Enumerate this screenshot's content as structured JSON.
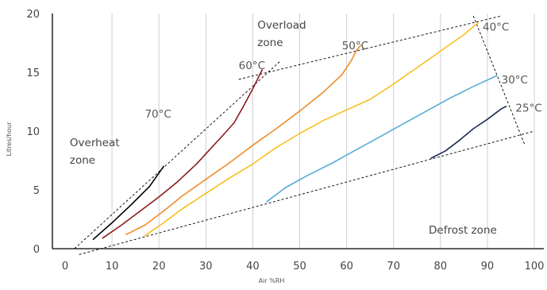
{
  "chart_data": {
    "type": "line",
    "xlabel": "Air %RH",
    "ylabel": "Litres/hour",
    "xlim": [
      -3,
      100
    ],
    "ylim": [
      0,
      20
    ],
    "xticks": [
      0,
      10,
      20,
      30,
      40,
      50,
      60,
      70,
      80,
      90,
      100
    ],
    "yticks": [
      0,
      5,
      10,
      15,
      20
    ],
    "grid": "vertical",
    "series": [
      {
        "name": "70°C",
        "color": "#000000",
        "points": [
          [
            6,
            0.8
          ],
          [
            10,
            2.2
          ],
          [
            14,
            3.7
          ],
          [
            18,
            5.3
          ],
          [
            21,
            7.0
          ]
        ],
        "label_at": [
          17,
          11.5
        ]
      },
      {
        "name": "60°C",
        "color": "#8b1a1e",
        "points": [
          [
            8,
            0.9
          ],
          [
            12,
            2.0
          ],
          [
            16,
            3.2
          ],
          [
            20,
            4.4
          ],
          [
            24,
            5.7
          ],
          [
            28,
            7.2
          ],
          [
            31,
            8.5
          ],
          [
            34,
            9.8
          ],
          [
            36,
            10.7
          ],
          [
            38,
            12.1
          ],
          [
            40,
            13.6
          ],
          [
            42,
            15.2
          ]
        ],
        "label_at": [
          37,
          15.6
        ]
      },
      {
        "name": "50°C",
        "color": "#ef8c2b",
        "points": [
          [
            13,
            1.2
          ],
          [
            17,
            2.0
          ],
          [
            21,
            3.2
          ],
          [
            25,
            4.5
          ],
          [
            30,
            5.9
          ],
          [
            35,
            7.3
          ],
          [
            40,
            8.8
          ],
          [
            45,
            10.2
          ],
          [
            50,
            11.7
          ],
          [
            55,
            13.3
          ],
          [
            59,
            14.8
          ],
          [
            61,
            16.0
          ],
          [
            62,
            16.8
          ],
          [
            63,
            17.3
          ]
        ],
        "label_at": [
          59,
          17.3
        ]
      },
      {
        "name": "40°C",
        "color": "#f7bf1d",
        "points": [
          [
            17,
            1.1
          ],
          [
            21,
            2.2
          ],
          [
            25,
            3.4
          ],
          [
            30,
            4.7
          ],
          [
            35,
            6.0
          ],
          [
            40,
            7.2
          ],
          [
            45,
            8.6
          ],
          [
            50,
            9.8
          ],
          [
            55,
            10.9
          ],
          [
            60,
            11.8
          ],
          [
            65,
            12.7
          ],
          [
            70,
            14.0
          ],
          [
            75,
            15.4
          ],
          [
            80,
            16.8
          ],
          [
            85,
            18.2
          ],
          [
            88,
            19.2
          ]
        ],
        "label_at": [
          89,
          18.9
        ]
      },
      {
        "name": "30°C",
        "color": "#58acd6",
        "points": [
          [
            43,
            4.0
          ],
          [
            47,
            5.2
          ],
          [
            52,
            6.3
          ],
          [
            57,
            7.3
          ],
          [
            62,
            8.4
          ],
          [
            67,
            9.5
          ],
          [
            72,
            10.6
          ],
          [
            77,
            11.7
          ],
          [
            82,
            12.8
          ],
          [
            87,
            13.8
          ],
          [
            92,
            14.7
          ]
        ],
        "label_at": [
          93,
          14.4
        ]
      },
      {
        "name": "25°C",
        "color": "#1c2d55",
        "points": [
          [
            78,
            7.7
          ],
          [
            81,
            8.3
          ],
          [
            84,
            9.2
          ],
          [
            87,
            10.2
          ],
          [
            90,
            11.0
          ],
          [
            92,
            11.6
          ],
          [
            93,
            11.9
          ],
          [
            94,
            12.1
          ]
        ],
        "label_at": [
          96,
          12.0
        ]
      }
    ],
    "boundaries": [
      {
        "name": "overheat",
        "points": [
          [
            2,
            0
          ],
          [
            46,
            16.0
          ]
        ]
      },
      {
        "name": "overload",
        "points": [
          [
            37,
            14.4
          ],
          [
            93,
            19.8
          ]
        ]
      },
      {
        "name": "defrost-top",
        "points": [
          [
            3,
            -0.5
          ],
          [
            100,
            10.0
          ]
        ]
      },
      {
        "name": "defrost-right",
        "points": [
          [
            87,
            19.8
          ],
          [
            98,
            8.8
          ]
        ]
      }
    ],
    "annotations": [
      {
        "id": "overheat-zone",
        "lines": [
          "Overheat",
          "zone"
        ],
        "at": [
          1,
          8.7
        ]
      },
      {
        "id": "overload-zone",
        "lines": [
          "Overload",
          "zone"
        ],
        "at": [
          41,
          18.7
        ]
      },
      {
        "id": "defrost-zone",
        "lines": [
          "Defrost zone"
        ],
        "at": [
          77.5,
          1.3
        ]
      }
    ]
  }
}
